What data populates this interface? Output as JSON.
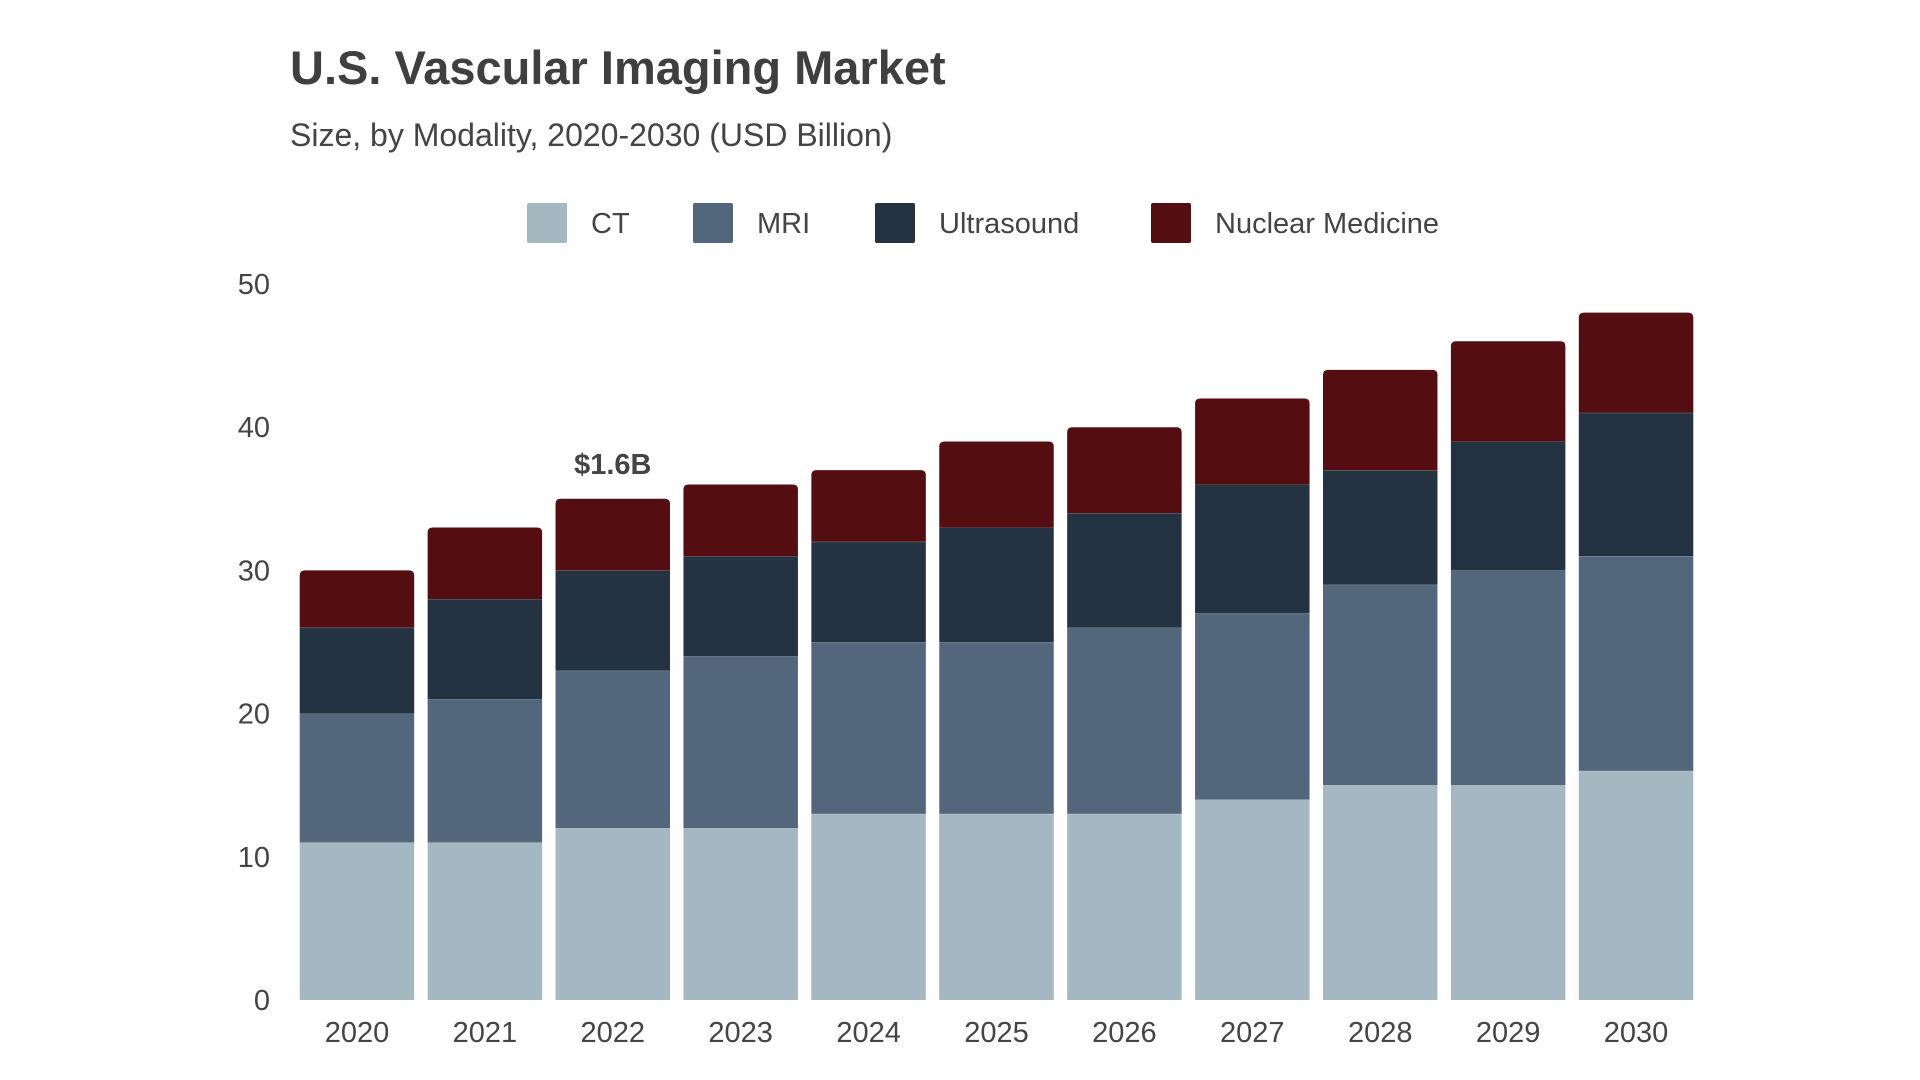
{
  "chart_data": {
    "type": "bar",
    "stacked": true,
    "title": "U.S. Vascular Imaging Market",
    "subtitle": "Size, by Modality, 2020-2030 (USD Billion)",
    "xlabel": "",
    "ylabel": "",
    "categories": [
      "2020",
      "2021",
      "2022",
      "2023",
      "2024",
      "2025",
      "2026",
      "2027",
      "2028",
      "2029",
      "2030"
    ],
    "series": [
      {
        "name": "CT",
        "color": "#a3b8c1",
        "values": [
          11,
          11,
          12,
          12,
          13,
          13,
          13,
          14,
          15,
          15,
          16
        ]
      },
      {
        "name": "MRI",
        "color": "#52677b",
        "values": [
          9,
          10,
          11,
          12,
          12,
          12,
          13,
          13,
          14,
          15,
          15
        ]
      },
      {
        "name": "Ultrasound",
        "color": "#243341",
        "values": [
          6,
          7,
          7,
          7,
          7,
          8,
          8,
          9,
          8,
          9,
          10
        ]
      },
      {
        "name": "Nuclear Medicine",
        "color": "#540d10",
        "values": [
          4,
          5,
          5,
          5,
          5,
          6,
          6,
          6,
          7,
          7,
          7
        ]
      }
    ],
    "ylim": [
      0,
      50
    ],
    "yticks": [
      "0",
      "10",
      "20",
      "30",
      "40",
      "50"
    ],
    "grid": false,
    "legend_position": "top-center",
    "annotations": [
      {
        "category": "2022",
        "text": "$1.6B"
      }
    ]
  }
}
